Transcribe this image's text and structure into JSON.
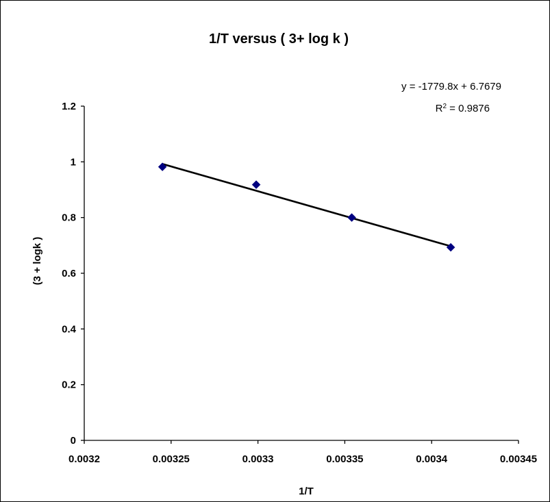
{
  "chart_data": {
    "type": "scatter",
    "title": "1/T versus ( 3+ log k )",
    "xlabel": "1/T",
    "ylabel": "(3 + logk )",
    "xlim": [
      0.0032,
      0.00345
    ],
    "ylim": [
      0,
      1.2
    ],
    "x_ticks": [
      0.0032,
      0.00325,
      0.0033,
      0.00335,
      0.0034,
      0.00345
    ],
    "x_tick_labels": [
      "0.0032",
      "0.00325",
      "0.0033",
      "0.00335",
      "0.0034",
      "0.00345"
    ],
    "y_ticks": [
      0,
      0.2,
      0.4,
      0.6,
      0.8,
      1.0,
      1.2
    ],
    "y_tick_labels": [
      "0",
      "0.2",
      "0.4",
      "0.6",
      "0.8",
      "1",
      "1.2"
    ],
    "grid": false,
    "series": [
      {
        "x": [
          0.003245,
          0.003299,
          0.003354,
          0.003411
        ],
        "y": [
          0.982,
          0.918,
          0.8,
          0.693
        ],
        "color": "#000080",
        "marker": "diamond"
      }
    ],
    "trendline": {
      "slope": -1779.8,
      "intercept": 6.7679,
      "color": "#000000"
    },
    "annotations": {
      "equation": "y = -1779.8x + 6.7679",
      "r2_prefix": "R",
      "r2_superscript": "2",
      "r2_value": " = 0.9876"
    }
  }
}
